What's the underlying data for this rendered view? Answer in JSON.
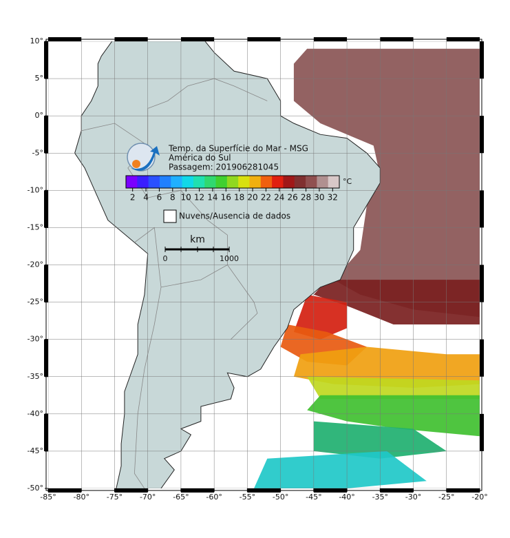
{
  "title_lines": [
    "Temp. da Superfície do Mar - MSG",
    "América do Sul",
    "Passagem: 201906281045"
  ],
  "colorbar": {
    "ticks": [
      2,
      4,
      6,
      8,
      10,
      12,
      14,
      16,
      18,
      20,
      22,
      24,
      26,
      28,
      30,
      32
    ],
    "unit": "°C",
    "range": [
      1,
      33
    ],
    "colors": [
      "#7a00ff",
      "#3a1fff",
      "#2a50ff",
      "#1f80ff",
      "#1fb0ff",
      "#10d8e8",
      "#20e0b0",
      "#30d870",
      "#40d030",
      "#90d820",
      "#d8e010",
      "#f0b010",
      "#f06010",
      "#e02010",
      "#a01818",
      "#803030",
      "#905050",
      "#b09090",
      "#d8c8c8"
    ]
  },
  "legend": {
    "label": "Nuvens/Ausencia de dados"
  },
  "scale_bar": {
    "unit": "km",
    "labels": [
      "0",
      "1000"
    ]
  },
  "map": {
    "lon_ticks": [
      {
        "value": -85,
        "label": "-85°"
      },
      {
        "value": -80,
        "label": "-80°"
      },
      {
        "value": -75,
        "label": "-75°"
      },
      {
        "value": -70,
        "label": "-70°"
      },
      {
        "value": -65,
        "label": "-65°"
      },
      {
        "value": -60,
        "label": "-60°"
      },
      {
        "value": -55,
        "label": "-55°"
      },
      {
        "value": -50,
        "label": "-50°"
      },
      {
        "value": -45,
        "label": "-45°"
      },
      {
        "value": -40,
        "label": "-40°"
      },
      {
        "value": -35,
        "label": "-35°"
      },
      {
        "value": -30,
        "label": "-30°"
      },
      {
        "value": -25,
        "label": "-25°"
      },
      {
        "value": -20,
        "label": "-20°"
      }
    ],
    "lat_ticks": [
      {
        "value": 10,
        "label": "10°"
      },
      {
        "value": 5,
        "label": "5°"
      },
      {
        "value": 0,
        "label": "0°"
      },
      {
        "value": -5,
        "label": "-5°"
      },
      {
        "value": -10,
        "label": "-10°"
      },
      {
        "value": -15,
        "label": "-15°"
      },
      {
        "value": -20,
        "label": "-20°"
      },
      {
        "value": -25,
        "label": "-25°"
      },
      {
        "value": -30,
        "label": "-30°"
      },
      {
        "value": -35,
        "label": "-35°"
      },
      {
        "value": -40,
        "label": "-40°"
      },
      {
        "value": -45,
        "label": "-45°"
      },
      {
        "value": -50,
        "label": "-50°"
      }
    ],
    "xlim": [
      -85,
      -20
    ],
    "ylim": [
      -50,
      10
    ]
  }
}
